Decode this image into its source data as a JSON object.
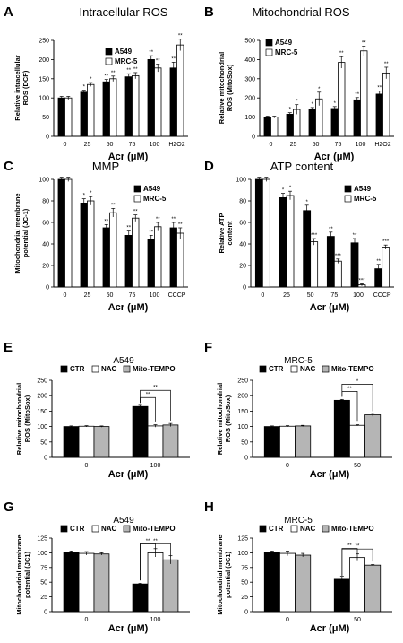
{
  "panels": [
    {
      "letter": "A",
      "title": "Intracellular ROS",
      "ylabel": "Relative intracellular ROS (DCF)",
      "xlabel": "Acr (μM)",
      "categories": [
        "0",
        "25",
        "50",
        "75",
        "100",
        "H2O2"
      ],
      "ylim": [
        0,
        250
      ],
      "yticks": [
        0,
        50,
        100,
        150,
        200,
        250
      ],
      "series": [
        {
          "name": "A549",
          "color": "#000000",
          "values": [
            100,
            115,
            142,
            155,
            200,
            178
          ],
          "errors": [
            4,
            5,
            6,
            8,
            10,
            15
          ],
          "sig": [
            "",
            "*",
            "**",
            "**",
            "**",
            "**"
          ]
        },
        {
          "name": "MRC-5",
          "color": "#ffffff",
          "values": [
            100,
            135,
            150,
            158,
            178,
            238
          ],
          "errors": [
            4,
            5,
            7,
            8,
            10,
            15
          ],
          "sig": [
            "",
            "*",
            "**",
            "**",
            "**",
            "**"
          ]
        }
      ]
    },
    {
      "letter": "B",
      "title": "Mitochondrial ROS",
      "ylabel": "Relative mitochondrial ROS (MitoSox)",
      "xlabel": "Acr (μM)",
      "categories": [
        "0",
        "25",
        "50",
        "75",
        "100",
        "H2O2"
      ],
      "ylim": [
        0,
        500
      ],
      "yticks": [
        0,
        100,
        200,
        300,
        400,
        500
      ],
      "series": [
        {
          "name": "A549",
          "color": "#000000",
          "values": [
            100,
            115,
            140,
            145,
            190,
            220
          ],
          "errors": [
            5,
            8,
            10,
            10,
            12,
            15
          ],
          "sig": [
            "",
            "*",
            "*",
            "*",
            "**",
            "**"
          ]
        },
        {
          "name": "MRC-5",
          "color": "#ffffff",
          "values": [
            100,
            140,
            195,
            385,
            445,
            330
          ],
          "errors": [
            5,
            25,
            35,
            30,
            25,
            30
          ],
          "sig": [
            "",
            "*",
            "*",
            "**",
            "**",
            "**"
          ]
        }
      ]
    },
    {
      "letter": "C",
      "title": "MMP",
      "ylabel": "Mitochondrial membrane potential (JC-1)",
      "xlabel": "Acr (μM)",
      "categories": [
        "0",
        "25",
        "50",
        "75",
        "100",
        "CCCP"
      ],
      "ylim": [
        0,
        100
      ],
      "yticks": [
        0,
        20,
        40,
        60,
        80,
        100
      ],
      "series": [
        {
          "name": "A549",
          "color": "#000000",
          "values": [
            100,
            78,
            55,
            48,
            44,
            55
          ],
          "errors": [
            2,
            4,
            3,
            4,
            4,
            5
          ],
          "sig": [
            "",
            "*",
            "**",
            "**",
            "**",
            "**"
          ]
        },
        {
          "name": "MRC-5",
          "color": "#ffffff",
          "values": [
            100,
            80,
            69,
            64,
            56,
            50
          ],
          "errors": [
            2,
            4,
            4,
            3,
            4,
            5
          ],
          "sig": [
            "",
            "*",
            "**",
            "**",
            "**",
            "**"
          ]
        }
      ]
    },
    {
      "letter": "D",
      "title": "ATP content",
      "ylabel": "Relative ATP content",
      "xlabel": "Acr (μM)",
      "categories": [
        "0",
        "25",
        "50",
        "75",
        "100",
        "CCCP"
      ],
      "ylim": [
        0,
        100
      ],
      "yticks": [
        0,
        20,
        40,
        60,
        80,
        100
      ],
      "series": [
        {
          "name": "A549",
          "color": "#000000",
          "values": [
            100,
            83,
            71,
            47,
            41,
            17
          ],
          "errors": [
            2,
            4,
            5,
            4,
            4,
            4
          ],
          "sig": [
            "",
            "*",
            "*",
            "**",
            "**",
            "**"
          ]
        },
        {
          "name": "MRC-5",
          "color": "#ffffff",
          "values": [
            100,
            85,
            42,
            24,
            2,
            37
          ],
          "errors": [
            2,
            4,
            3,
            2,
            1,
            2
          ],
          "sig": [
            "",
            "*",
            "***",
            "***",
            "***",
            "***"
          ]
        }
      ]
    },
    {
      "letter": "E",
      "title": "A549",
      "ylabel": "Relative mitochondrial ROS (MitoSox)",
      "xlabel": "Acr (μM)",
      "categories": [
        "0",
        "100"
      ],
      "ylim": [
        0,
        250
      ],
      "yticks": [
        0,
        50,
        100,
        150,
        200,
        250
      ],
      "brackets": [
        {
          "group": 1,
          "from": 0,
          "to": 1,
          "label": "**",
          "level": 0
        },
        {
          "group": 1,
          "from": 0,
          "to": 2,
          "label": "**",
          "level": 1
        }
      ],
      "series": [
        {
          "name": "CTR",
          "color": "#000000",
          "values": [
            100,
            165
          ],
          "errors": [
            2,
            4
          ]
        },
        {
          "name": "NAC",
          "color": "#ffffff",
          "values": [
            101,
            102
          ],
          "errors": [
            2,
            4
          ]
        },
        {
          "name": "Mito-TEMPO",
          "color": "#b5b5b5",
          "values": [
            100,
            105
          ],
          "errors": [
            2,
            5
          ]
        }
      ]
    },
    {
      "letter": "F",
      "title": "MRC-5",
      "ylabel": "Relative mitochondrial ROS (MitoSox)",
      "xlabel": "Acr (μM)",
      "categories": [
        "0",
        "50"
      ],
      "ylim": [
        0,
        250
      ],
      "yticks": [
        0,
        50,
        100,
        150,
        200,
        250
      ],
      "brackets": [
        {
          "group": 1,
          "from": 0,
          "to": 1,
          "label": "**",
          "level": 0
        },
        {
          "group": 1,
          "from": 0,
          "to": 2,
          "label": "*",
          "level": 1
        }
      ],
      "series": [
        {
          "name": "CTR",
          "color": "#000000",
          "values": [
            100,
            185
          ],
          "errors": [
            2,
            3
          ]
        },
        {
          "name": "NAC",
          "color": "#ffffff",
          "values": [
            101,
            104
          ],
          "errors": [
            2,
            2
          ]
        },
        {
          "name": "Mito-TEMPO",
          "color": "#b5b5b5",
          "values": [
            102,
            138
          ],
          "errors": [
            2,
            5
          ]
        }
      ]
    },
    {
      "letter": "G",
      "title": "A549",
      "ylabel": "Mitochondrial membrane potential (JC1)",
      "xlabel": "Acr (μM)",
      "categories": [
        "0",
        "100"
      ],
      "ylim": [
        0,
        125
      ],
      "yticks": [
        0,
        25,
        50,
        75,
        100,
        125
      ],
      "brackets": [
        {
          "group": 1,
          "from": 0,
          "to": 1,
          "label": "**",
          "level": 0
        },
        {
          "group": 1,
          "from": 0,
          "to": 2,
          "label": "**",
          "level": 1
        }
      ],
      "series": [
        {
          "name": "CTR",
          "color": "#000000",
          "values": [
            100,
            47
          ],
          "errors": [
            3,
            1
          ]
        },
        {
          "name": "NAC",
          "color": "#ffffff",
          "values": [
            99,
            100
          ],
          "errors": [
            3,
            7
          ]
        },
        {
          "name": "Mito-TEMPO",
          "color": "#b5b5b5",
          "values": [
            98,
            88
          ],
          "errors": [
            2,
            7
          ]
        }
      ]
    },
    {
      "letter": "H",
      "title": "MRC-5",
      "ylabel": "Mitochondrial membrane potential (JC1)",
      "xlabel": "Acr (μM)",
      "categories": [
        "0",
        "50"
      ],
      "ylim": [
        0,
        125
      ],
      "yticks": [
        0,
        25,
        50,
        75,
        100,
        125
      ],
      "brackets": [
        {
          "group": 1,
          "from": 0,
          "to": 1,
          "label": "**",
          "level": 0
        },
        {
          "group": 1,
          "from": 0,
          "to": 2,
          "label": "**",
          "level": 1
        }
      ],
      "series": [
        {
          "name": "CTR",
          "color": "#000000",
          "values": [
            100,
            55
          ],
          "errors": [
            3,
            5
          ]
        },
        {
          "name": "NAC",
          "color": "#ffffff",
          "values": [
            99,
            92
          ],
          "errors": [
            4,
            6
          ]
        },
        {
          "name": "Mito-TEMPO",
          "color": "#b5b5b5",
          "values": [
            96,
            79
          ],
          "errors": [
            3,
            1
          ]
        }
      ]
    }
  ]
}
